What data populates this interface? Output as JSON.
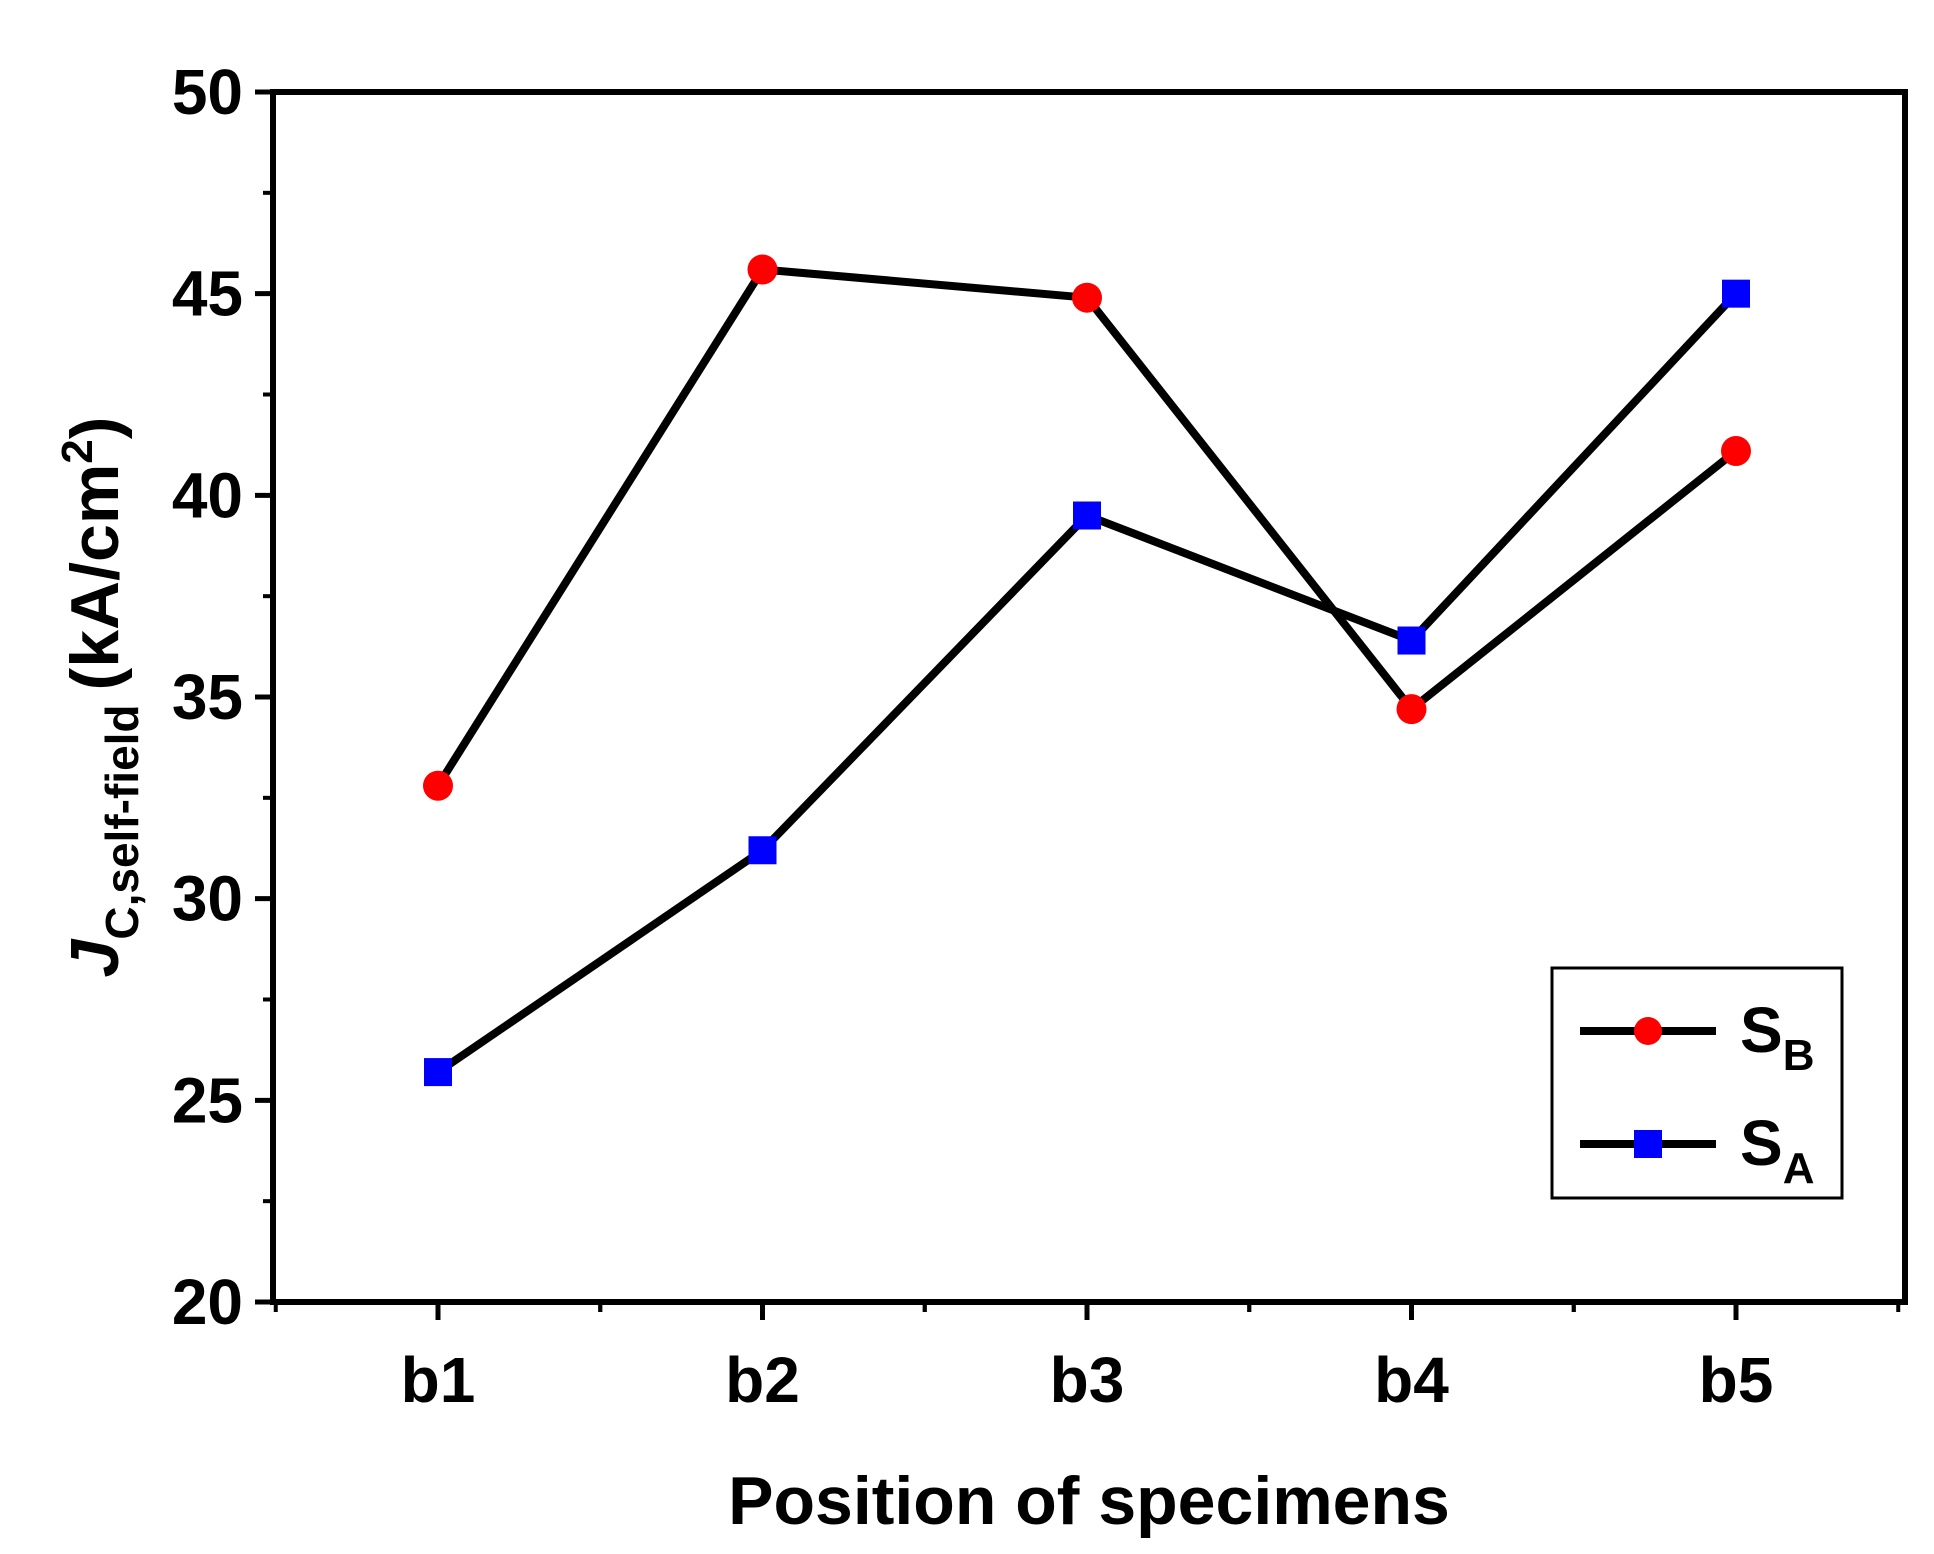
{
  "chart_data": {
    "type": "line",
    "categories": [
      "b1",
      "b2",
      "b3",
      "b4",
      "b5"
    ],
    "series": [
      {
        "name": "S",
        "subscript": "B",
        "marker": "circle",
        "color": "#ff0000",
        "line_color": "#000000",
        "values": [
          32.8,
          45.6,
          44.9,
          34.7,
          41.1
        ]
      },
      {
        "name": "S",
        "subscript": "A",
        "marker": "square",
        "color": "#0000ff",
        "line_color": "#000000",
        "values": [
          25.7,
          31.2,
          39.5,
          36.4,
          45.0
        ]
      }
    ],
    "xlabel": "Position of specimens",
    "ylabel": {
      "main": "J",
      "sub": "C,self-field",
      "unit_prefix": "(kA/cm",
      "unit_sup": "2",
      "unit_suffix": ")"
    },
    "ylim": [
      20,
      50
    ],
    "yticks": [
      20,
      25,
      30,
      35,
      40,
      45,
      50
    ],
    "ytick_labels": [
      "20",
      "25",
      "30",
      "35",
      "40",
      "45",
      "50"
    ],
    "grid": false,
    "legend_position": "bottom-right"
  }
}
